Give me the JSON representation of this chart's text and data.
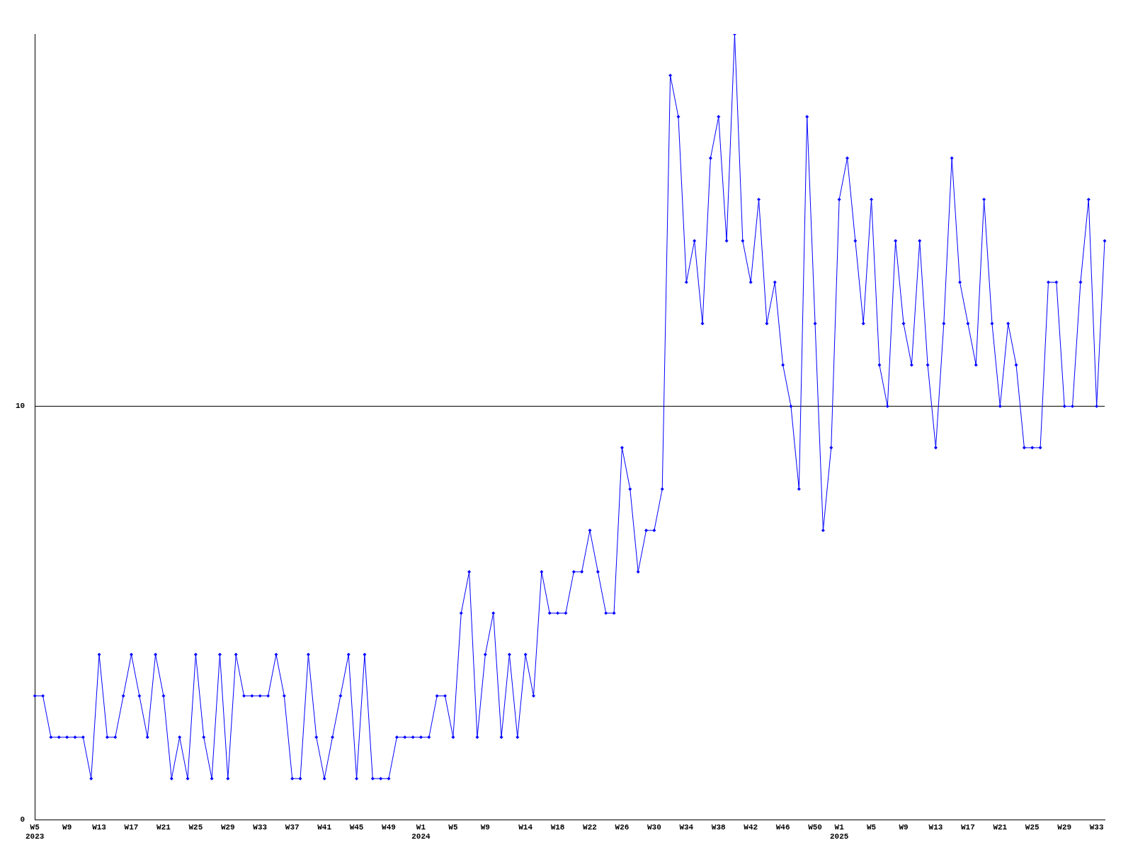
{
  "chart_data": {
    "type": "line",
    "categories": [
      "W5\n2023",
      null,
      null,
      null,
      "W9",
      null,
      null,
      null,
      "W13",
      null,
      null,
      null,
      "W17",
      null,
      null,
      null,
      "W21",
      null,
      null,
      null,
      "W25",
      null,
      null,
      null,
      "W29",
      null,
      null,
      null,
      "W33",
      null,
      null,
      null,
      "W37",
      null,
      null,
      null,
      "W41",
      null,
      null,
      null,
      "W45",
      null,
      null,
      null,
      "W49",
      null,
      null,
      null,
      "W1\n2024",
      null,
      null,
      null,
      "W5",
      null,
      null,
      null,
      "W9",
      null,
      null,
      null,
      null,
      "W14",
      null,
      null,
      null,
      "W18",
      null,
      null,
      null,
      "W22",
      null,
      null,
      null,
      "W26",
      null,
      null,
      null,
      "W30",
      null,
      null,
      null,
      "W34",
      null,
      null,
      null,
      "W38",
      null,
      null,
      null,
      "W42",
      null,
      null,
      null,
      "W46",
      null,
      null,
      null,
      "W50",
      null,
      null,
      "W1\n2025",
      null,
      null,
      null,
      "W5",
      null,
      null,
      null,
      "W9",
      null,
      null,
      null,
      "W13",
      null,
      null,
      null,
      "W17",
      null,
      null,
      null,
      "W21",
      null,
      null,
      null,
      "W25",
      null,
      null,
      null,
      "W29",
      null,
      null,
      null,
      "W33",
      null
    ],
    "series": [
      {
        "color": "#0000ff",
        "values": [
          3,
          3,
          2,
          2,
          2,
          2,
          2,
          1,
          4,
          2,
          2,
          3,
          4,
          3,
          2,
          4,
          3,
          1,
          2,
          1,
          4,
          2,
          1,
          4,
          1,
          4,
          3,
          3,
          3,
          3,
          4,
          3,
          1,
          1,
          4,
          2,
          1,
          2,
          3,
          4,
          1,
          4,
          1,
          1,
          1,
          2,
          2,
          2,
          2,
          2,
          3,
          3,
          2,
          5,
          6,
          2,
          4,
          5,
          2,
          4,
          2,
          4,
          3,
          6,
          5,
          5,
          5,
          6,
          6,
          7,
          6,
          5,
          5,
          9,
          8,
          6,
          7,
          7,
          8,
          18,
          17,
          13,
          14,
          12,
          16,
          17,
          14,
          19,
          14,
          13,
          15,
          12,
          13,
          11,
          10,
          8,
          17,
          12,
          7,
          9,
          15,
          16,
          14,
          12,
          15,
          11,
          10,
          14,
          12,
          11,
          14,
          11,
          9,
          12,
          16,
          13,
          12,
          11,
          15,
          12,
          10,
          12,
          11,
          9,
          9,
          9,
          13,
          13,
          10,
          10,
          13,
          15,
          10,
          14
        ]
      }
    ],
    "ylim": [
      0,
      19
    ],
    "yticks": [
      0,
      10
    ],
    "grid": "y",
    "marker": "diamond",
    "line_style": "solid"
  }
}
